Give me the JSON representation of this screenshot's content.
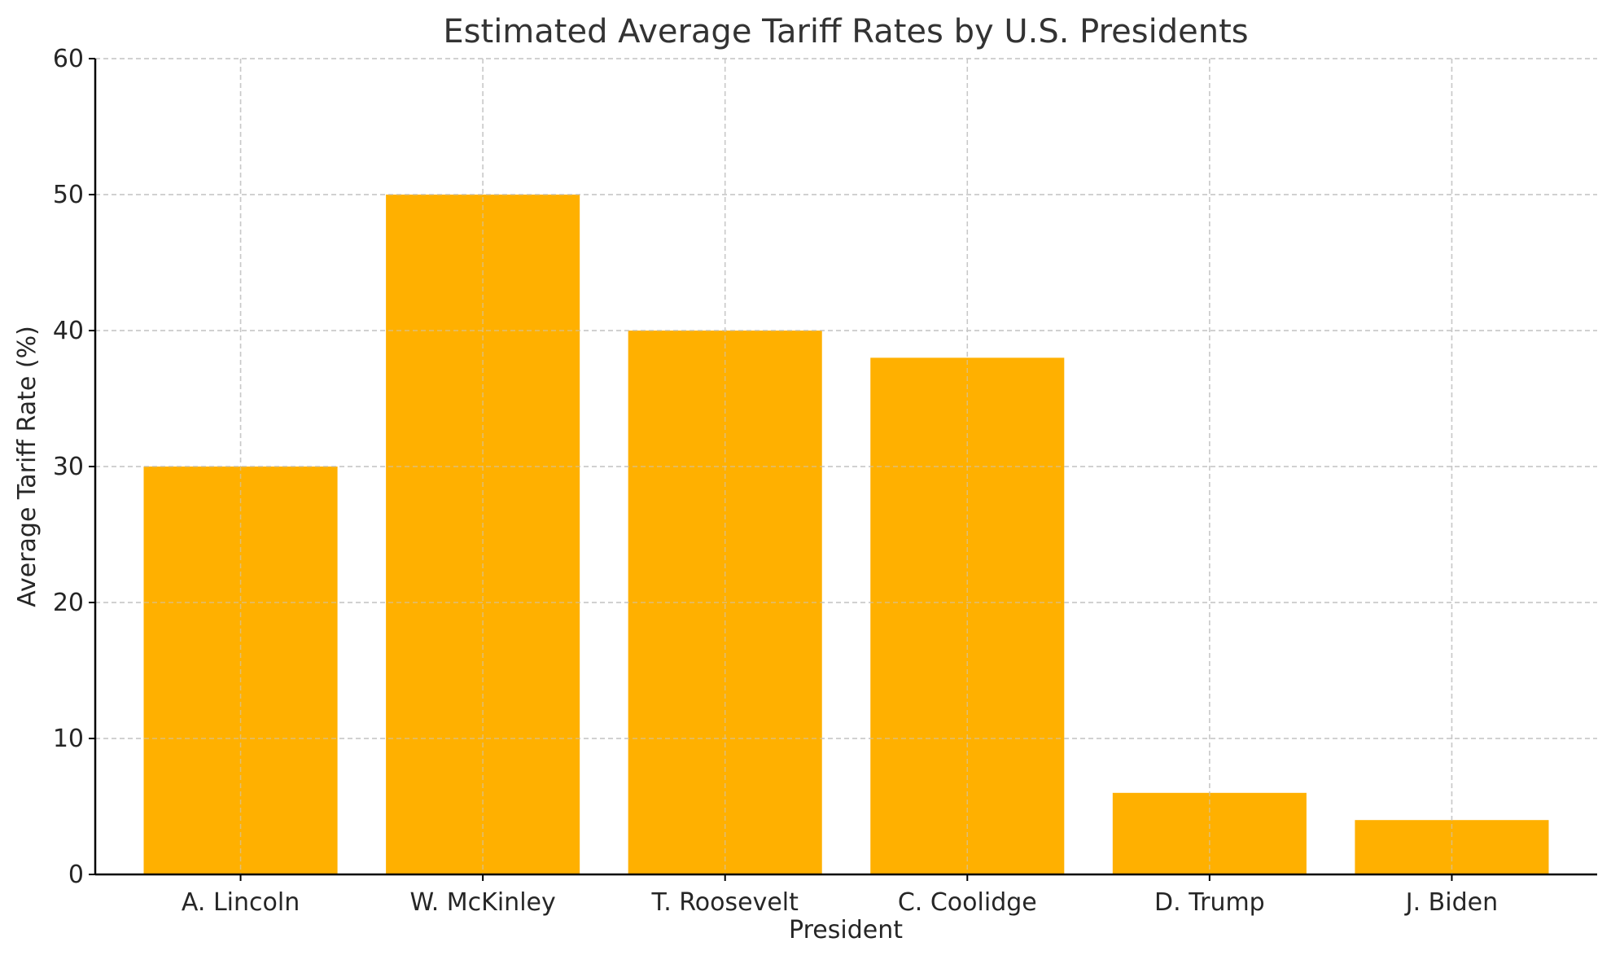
{
  "chart_data": {
    "type": "bar",
    "title": "Estimated Average Tariff Rates by U.S. Presidents",
    "xlabel": "President",
    "ylabel": "Average Tariff Rate (%)",
    "categories": [
      "A. Lincoln",
      "W. McKinley",
      "T. Roosevelt",
      "C. Coolidge",
      "D. Trump",
      "J. Biden"
    ],
    "values": [
      30,
      50,
      40,
      38,
      6,
      4
    ],
    "ylim": [
      0,
      60
    ],
    "yticks": [
      "0",
      "10",
      "20",
      "30",
      "40",
      "50",
      "60"
    ],
    "grid": true,
    "bar_color": "#FFB000",
    "grid_color": "#c8c8c8"
  }
}
